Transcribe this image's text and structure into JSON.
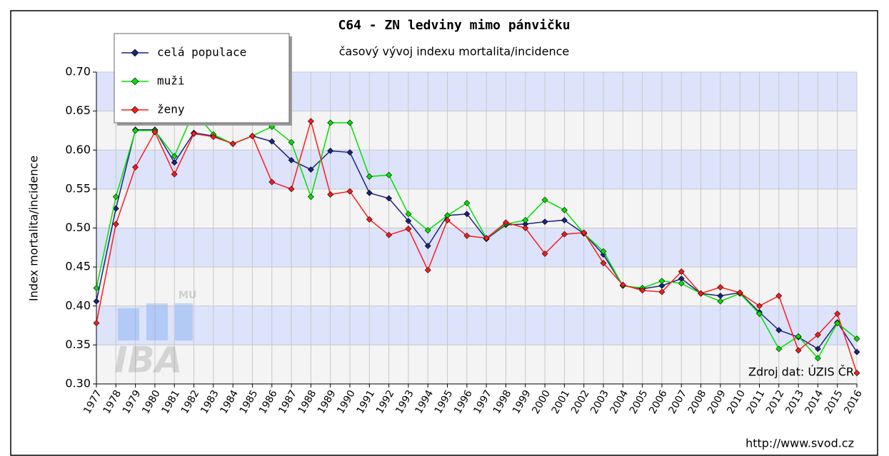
{
  "chart_data": {
    "type": "line",
    "title": "C64 - ZN ledviny mimo pánvičku",
    "subtitle": "časový vývoj indexu mortalita/incidence",
    "y_label": "Index mortalita/incidence",
    "source": "Zdroj dat: ÚZIS ČR",
    "url": "http://www.svod.cz",
    "logo": {
      "top": "MU",
      "main": "IBA"
    },
    "categories": [
      "1977",
      "1978",
      "1979",
      "1980",
      "1981",
      "1982",
      "1983",
      "1984",
      "1985",
      "1986",
      "1987",
      "1988",
      "1989",
      "1990",
      "1991",
      "1992",
      "1993",
      "1994",
      "1995",
      "1996",
      "1997",
      "1998",
      "1999",
      "2000",
      "2001",
      "2002",
      "2003",
      "2004",
      "2005",
      "2006",
      "2007",
      "2008",
      "2009",
      "2010",
      "2011",
      "2012",
      "2013",
      "2014",
      "2015",
      "2016"
    ],
    "series": [
      {
        "name": "celá populace",
        "color": "#1a237e",
        "values": [
          0.406,
          0.525,
          0.626,
          0.626,
          0.584,
          0.622,
          0.618,
          0.608,
          0.618,
          0.611,
          0.587,
          0.575,
          0.599,
          0.597,
          0.545,
          0.538,
          0.509,
          0.477,
          0.516,
          0.518,
          0.486,
          0.504,
          0.505,
          0.508,
          0.51,
          0.493,
          0.466,
          0.426,
          0.422,
          0.426,
          0.435,
          0.416,
          0.413,
          0.417,
          0.392,
          0.369,
          0.36,
          0.345,
          0.379,
          0.341
        ]
      },
      {
        "name": "muži",
        "color": "#00e000",
        "values": [
          0.423,
          0.54,
          0.625,
          0.625,
          0.592,
          0.65,
          0.62,
          0.608,
          0.618,
          0.63,
          0.61,
          0.54,
          0.635,
          0.635,
          0.566,
          0.568,
          0.518,
          0.497,
          0.516,
          0.532,
          0.487,
          0.505,
          0.51,
          0.536,
          0.523,
          0.493,
          0.47,
          0.426,
          0.423,
          0.432,
          0.429,
          0.416,
          0.406,
          0.416,
          0.39,
          0.345,
          0.361,
          0.333,
          0.378,
          0.358
        ]
      },
      {
        "name": "ženy",
        "color": "#ff1a1a",
        "values": [
          0.378,
          0.505,
          0.578,
          0.623,
          0.569,
          0.621,
          0.617,
          0.608,
          0.618,
          0.559,
          0.55,
          0.637,
          0.543,
          0.547,
          0.511,
          0.491,
          0.499,
          0.446,
          0.51,
          0.49,
          0.487,
          0.507,
          0.5,
          0.467,
          0.492,
          0.494,
          0.455,
          0.427,
          0.42,
          0.418,
          0.444,
          0.416,
          0.424,
          0.417,
          0.4,
          0.413,
          0.343,
          0.363,
          0.39,
          0.314
        ]
      }
    ],
    "ylim": [
      0.3,
      0.7
    ],
    "yticks": [
      {
        "value": 0.3,
        "label": "0.30"
      },
      {
        "value": 0.35,
        "label": "0.35"
      },
      {
        "value": 0.4,
        "label": "0.40"
      },
      {
        "value": 0.45,
        "label": "0.45"
      },
      {
        "value": 0.5,
        "label": "0.50"
      },
      {
        "value": 0.55,
        "label": "0.55"
      },
      {
        "value": 0.6,
        "label": "0.60"
      },
      {
        "value": 0.65,
        "label": "0.65"
      },
      {
        "value": 0.7,
        "label": "0.70"
      }
    ],
    "grid": true,
    "legend": "upper left"
  }
}
